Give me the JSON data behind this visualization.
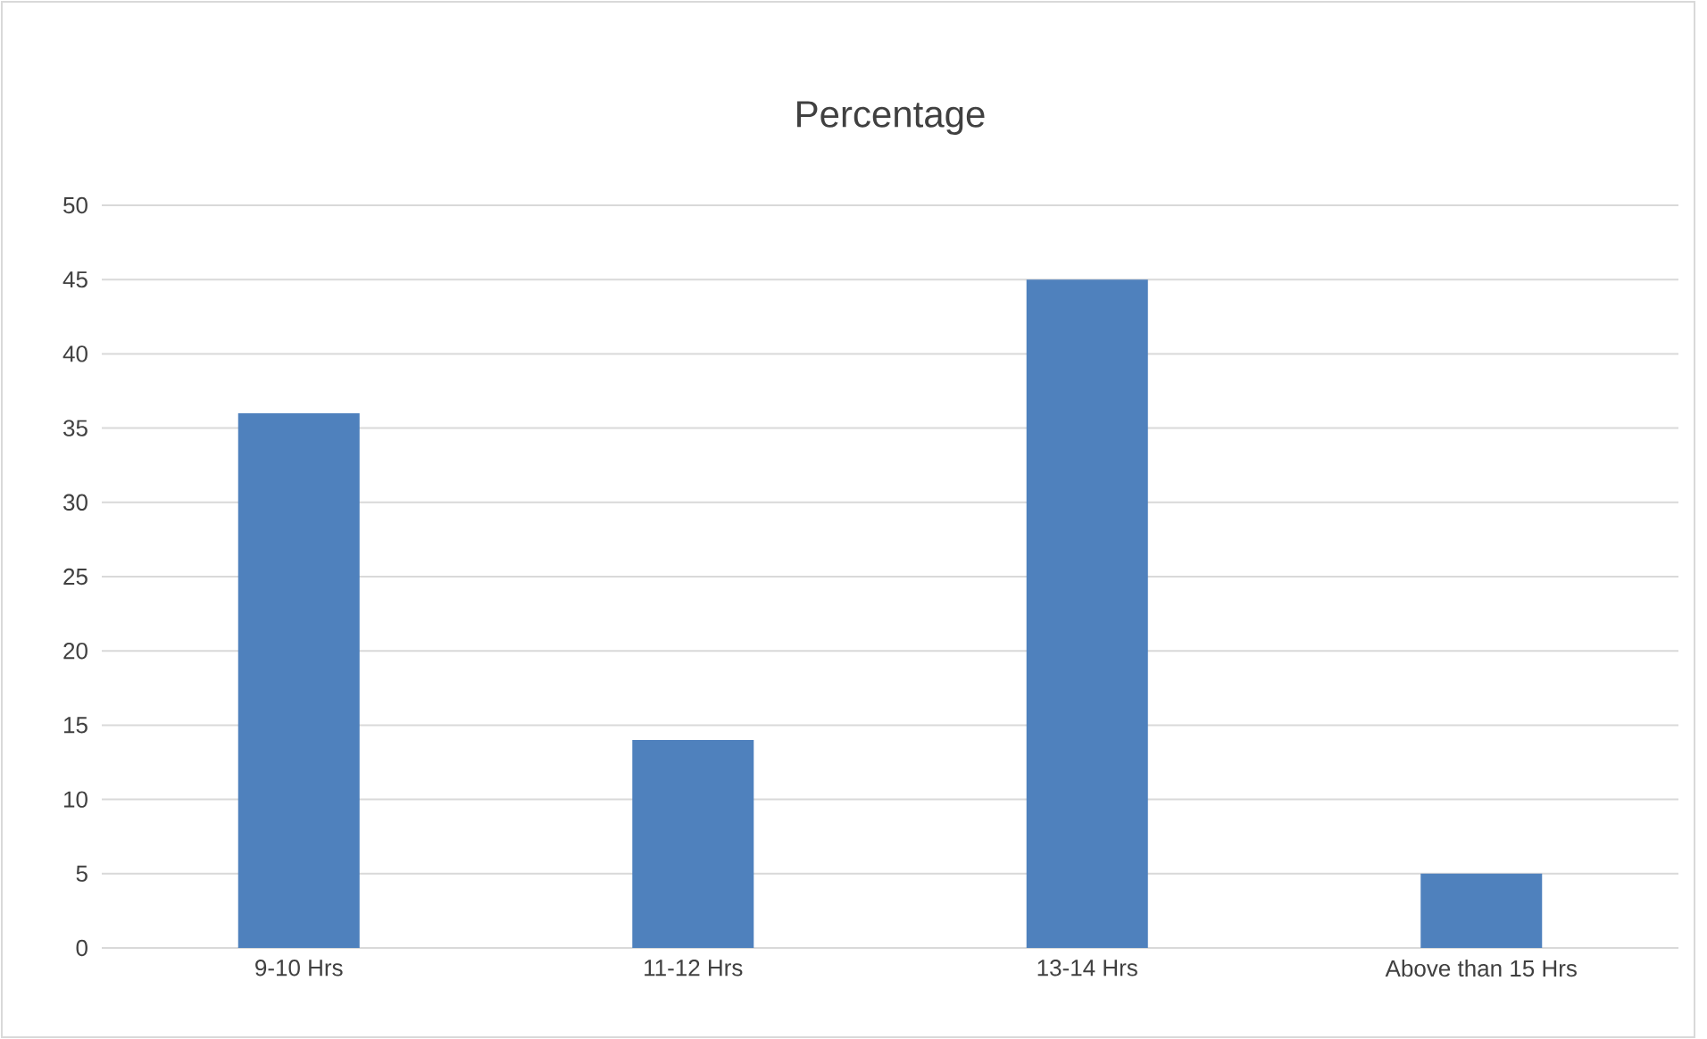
{
  "chart_data": {
    "type": "bar",
    "title": "Percentage",
    "categories": [
      "9-10 Hrs",
      "11-12 Hrs",
      "13-14 Hrs",
      "Above than 15 Hrs"
    ],
    "values": [
      36,
      14,
      45,
      5
    ],
    "color": "#4f81bd",
    "ylim": [
      0,
      50
    ],
    "yticks": [
      0,
      5,
      10,
      15,
      20,
      25,
      30,
      35,
      40,
      45,
      50
    ],
    "grid": "y"
  }
}
